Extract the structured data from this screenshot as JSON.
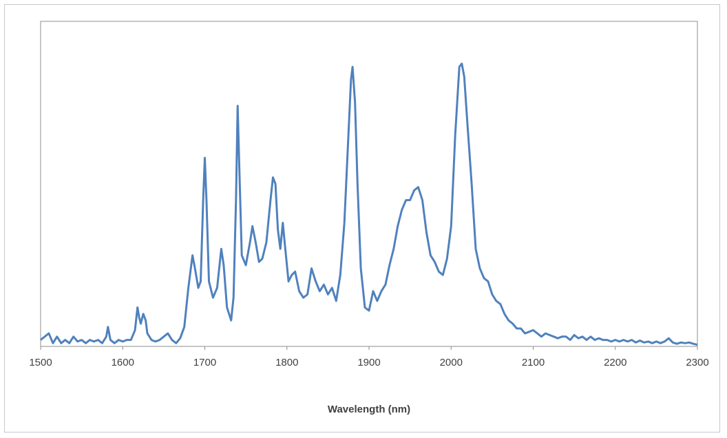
{
  "chart_data": {
    "type": "line",
    "title": "",
    "xlabel": "Wavelength (nm)",
    "ylabel": "",
    "xlim": [
      1500,
      2300
    ],
    "ylim": [
      0,
      1
    ],
    "xticks": [
      1500,
      1600,
      1700,
      1800,
      1900,
      2000,
      2100,
      2200,
      2300
    ],
    "grid": false,
    "legend": "none",
    "colors": {
      "line": "#4F81BD",
      "axes_border": "#8c8c8c",
      "frame_border": "#c7c7c7",
      "text": "#404040"
    },
    "series": [
      {
        "values": [
          [
            1500,
            0.02
          ],
          [
            1505,
            0.03
          ],
          [
            1510,
            0.04
          ],
          [
            1515,
            0.01
          ],
          [
            1520,
            0.03
          ],
          [
            1525,
            0.01
          ],
          [
            1530,
            0.02
          ],
          [
            1535,
            0.01
          ],
          [
            1540,
            0.03
          ],
          [
            1545,
            0.015
          ],
          [
            1550,
            0.02
          ],
          [
            1555,
            0.01
          ],
          [
            1560,
            0.02
          ],
          [
            1565,
            0.015
          ],
          [
            1570,
            0.02
          ],
          [
            1575,
            0.01
          ],
          [
            1580,
            0.03
          ],
          [
            1582,
            0.06
          ],
          [
            1585,
            0.02
          ],
          [
            1590,
            0.01
          ],
          [
            1595,
            0.02
          ],
          [
            1600,
            0.015
          ],
          [
            1605,
            0.02
          ],
          [
            1610,
            0.02
          ],
          [
            1615,
            0.05
          ],
          [
            1618,
            0.12
          ],
          [
            1620,
            0.09
          ],
          [
            1622,
            0.07
          ],
          [
            1625,
            0.1
          ],
          [
            1628,
            0.08
          ],
          [
            1630,
            0.04
          ],
          [
            1635,
            0.02
          ],
          [
            1640,
            0.015
          ],
          [
            1645,
            0.02
          ],
          [
            1650,
            0.03
          ],
          [
            1655,
            0.04
          ],
          [
            1660,
            0.02
          ],
          [
            1665,
            0.01
          ],
          [
            1670,
            0.025
          ],
          [
            1675,
            0.06
          ],
          [
            1680,
            0.18
          ],
          [
            1685,
            0.28
          ],
          [
            1688,
            0.24
          ],
          [
            1692,
            0.18
          ],
          [
            1695,
            0.2
          ],
          [
            1698,
            0.45
          ],
          [
            1700,
            0.58
          ],
          [
            1702,
            0.45
          ],
          [
            1705,
            0.2
          ],
          [
            1710,
            0.15
          ],
          [
            1715,
            0.18
          ],
          [
            1720,
            0.3
          ],
          [
            1723,
            0.25
          ],
          [
            1727,
            0.12
          ],
          [
            1732,
            0.08
          ],
          [
            1735,
            0.15
          ],
          [
            1738,
            0.45
          ],
          [
            1740,
            0.74
          ],
          [
            1742,
            0.55
          ],
          [
            1745,
            0.28
          ],
          [
            1750,
            0.25
          ],
          [
            1755,
            0.32
          ],
          [
            1758,
            0.37
          ],
          [
            1762,
            0.32
          ],
          [
            1766,
            0.26
          ],
          [
            1770,
            0.27
          ],
          [
            1775,
            0.32
          ],
          [
            1780,
            0.45
          ],
          [
            1783,
            0.52
          ],
          [
            1786,
            0.5
          ],
          [
            1789,
            0.36
          ],
          [
            1792,
            0.3
          ],
          [
            1795,
            0.38
          ],
          [
            1798,
            0.3
          ],
          [
            1802,
            0.2
          ],
          [
            1806,
            0.22
          ],
          [
            1810,
            0.23
          ],
          [
            1815,
            0.17
          ],
          [
            1820,
            0.15
          ],
          [
            1825,
            0.16
          ],
          [
            1830,
            0.24
          ],
          [
            1835,
            0.2
          ],
          [
            1840,
            0.17
          ],
          [
            1845,
            0.19
          ],
          [
            1850,
            0.16
          ],
          [
            1855,
            0.18
          ],
          [
            1860,
            0.14
          ],
          [
            1865,
            0.22
          ],
          [
            1870,
            0.38
          ],
          [
            1874,
            0.6
          ],
          [
            1878,
            0.82
          ],
          [
            1880,
            0.86
          ],
          [
            1883,
            0.75
          ],
          [
            1886,
            0.5
          ],
          [
            1890,
            0.24
          ],
          [
            1895,
            0.12
          ],
          [
            1900,
            0.11
          ],
          [
            1905,
            0.17
          ],
          [
            1910,
            0.14
          ],
          [
            1915,
            0.17
          ],
          [
            1920,
            0.19
          ],
          [
            1925,
            0.25
          ],
          [
            1930,
            0.3
          ],
          [
            1935,
            0.37
          ],
          [
            1940,
            0.42
          ],
          [
            1945,
            0.45
          ],
          [
            1950,
            0.45
          ],
          [
            1955,
            0.48
          ],
          [
            1960,
            0.49
          ],
          [
            1965,
            0.45
          ],
          [
            1970,
            0.35
          ],
          [
            1975,
            0.28
          ],
          [
            1980,
            0.26
          ],
          [
            1985,
            0.23
          ],
          [
            1990,
            0.22
          ],
          [
            1995,
            0.27
          ],
          [
            2000,
            0.37
          ],
          [
            2005,
            0.65
          ],
          [
            2010,
            0.86
          ],
          [
            2013,
            0.87
          ],
          [
            2016,
            0.83
          ],
          [
            2020,
            0.68
          ],
          [
            2025,
            0.5
          ],
          [
            2030,
            0.3
          ],
          [
            2035,
            0.24
          ],
          [
            2040,
            0.21
          ],
          [
            2045,
            0.2
          ],
          [
            2050,
            0.16
          ],
          [
            2055,
            0.14
          ],
          [
            2060,
            0.13
          ],
          [
            2065,
            0.1
          ],
          [
            2070,
            0.08
          ],
          [
            2075,
            0.07
          ],
          [
            2080,
            0.055
          ],
          [
            2085,
            0.055
          ],
          [
            2090,
            0.04
          ],
          [
            2095,
            0.045
          ],
          [
            2100,
            0.05
          ],
          [
            2105,
            0.04
          ],
          [
            2110,
            0.03
          ],
          [
            2115,
            0.04
          ],
          [
            2120,
            0.035
          ],
          [
            2125,
            0.03
          ],
          [
            2130,
            0.025
          ],
          [
            2135,
            0.03
          ],
          [
            2140,
            0.03
          ],
          [
            2145,
            0.02
          ],
          [
            2150,
            0.035
          ],
          [
            2155,
            0.025
          ],
          [
            2160,
            0.03
          ],
          [
            2165,
            0.02
          ],
          [
            2170,
            0.03
          ],
          [
            2175,
            0.02
          ],
          [
            2180,
            0.025
          ],
          [
            2185,
            0.02
          ],
          [
            2190,
            0.02
          ],
          [
            2195,
            0.015
          ],
          [
            2200,
            0.02
          ],
          [
            2205,
            0.015
          ],
          [
            2210,
            0.02
          ],
          [
            2215,
            0.015
          ],
          [
            2220,
            0.02
          ],
          [
            2225,
            0.012
          ],
          [
            2230,
            0.018
          ],
          [
            2235,
            0.012
          ],
          [
            2240,
            0.015
          ],
          [
            2245,
            0.01
          ],
          [
            2250,
            0.015
          ],
          [
            2255,
            0.01
          ],
          [
            2260,
            0.015
          ],
          [
            2265,
            0.025
          ],
          [
            2270,
            0.012
          ],
          [
            2275,
            0.008
          ],
          [
            2280,
            0.012
          ],
          [
            2285,
            0.01
          ],
          [
            2290,
            0.012
          ],
          [
            2295,
            0.008
          ],
          [
            2300,
            0.005
          ]
        ]
      }
    ]
  }
}
